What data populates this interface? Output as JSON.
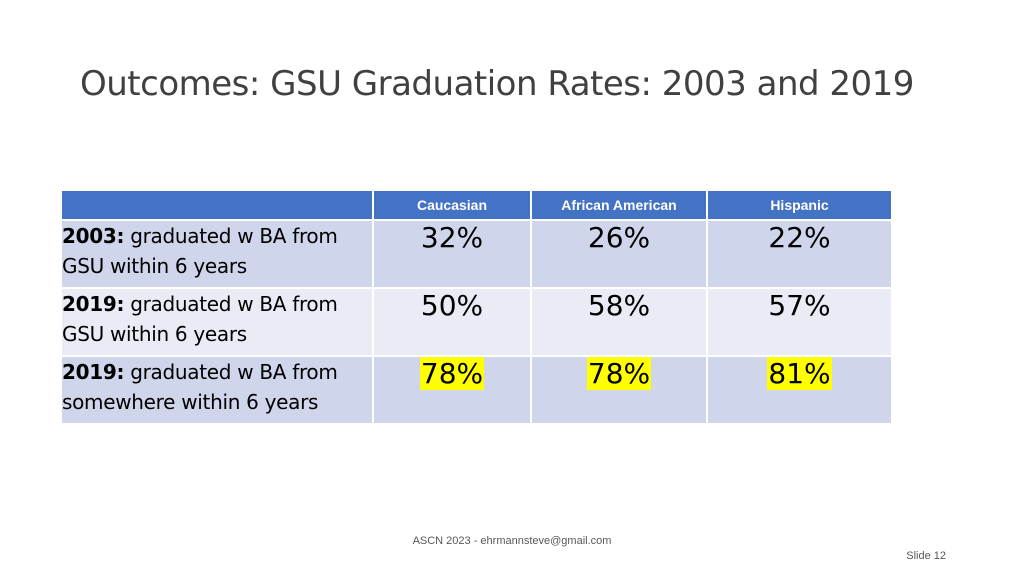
{
  "slide": {
    "title": "Outcomes: GSU Graduation Rates: 2003 and 2019",
    "footer": "ASCN 2023 - ehrmannsteve@gmail.com",
    "slide_number": "Slide 12"
  },
  "table": {
    "columns": [
      "",
      "Caucasian",
      "African American",
      "Hispanic"
    ],
    "rows": [
      {
        "year": "2003:",
        "label": " graduated w BA from GSU within 6 years",
        "values": [
          "32%",
          "26%",
          "22%"
        ],
        "highlighted": false
      },
      {
        "year": "2019:",
        "label": " graduated w BA from GSU within 6 years",
        "values": [
          "50%",
          "58%",
          "57%"
        ],
        "highlighted": false
      },
      {
        "year": "2019:",
        "label": " graduated w BA from somewhere within 6 years",
        "values": [
          "78%",
          "78%",
          "81%"
        ],
        "highlighted": true
      }
    ],
    "colors": {
      "header": "#4472c4",
      "row_odd": "#cfd5ea",
      "row_even": "#e9ebf5",
      "highlight": "#ffff00"
    }
  }
}
